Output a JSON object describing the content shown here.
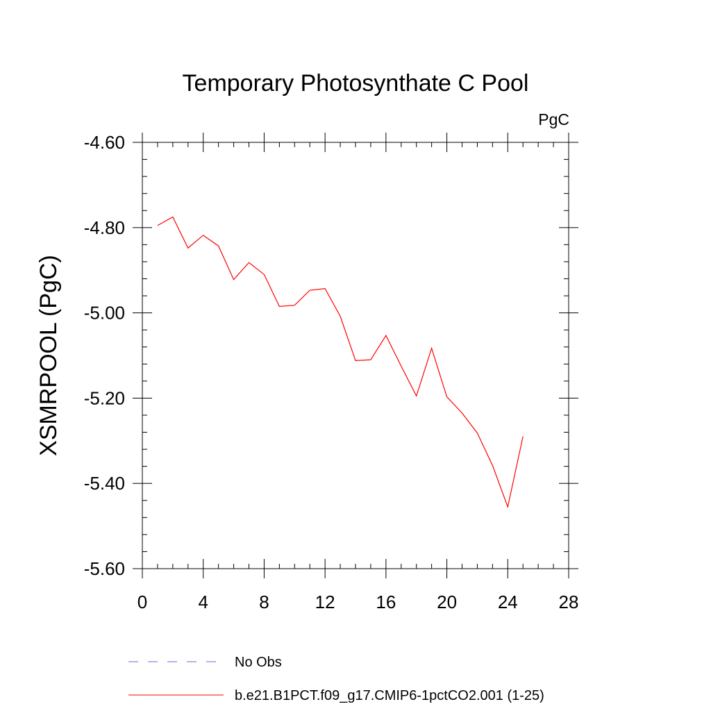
{
  "chart_data": {
    "type": "line",
    "title": "Temporary Photosynthate C Pool",
    "units_label": "PgC",
    "ylabel": "XSMRPOOL  (PgC)",
    "xlabel": "",
    "xlim": [
      0,
      28
    ],
    "ylim": [
      -5.6,
      -4.6
    ],
    "x_ticks": [
      0,
      4,
      8,
      12,
      16,
      20,
      24,
      28
    ],
    "x_tick_labels": [
      "0",
      "4",
      "8",
      "12",
      "16",
      "20",
      "24",
      "28"
    ],
    "y_ticks": [
      -4.6,
      -4.8,
      -5.0,
      -5.2,
      -5.4,
      -5.6
    ],
    "y_tick_labels": [
      "-4.60",
      "-4.80",
      "-5.00",
      "-5.20",
      "-5.40",
      "-5.60"
    ],
    "x_minor_step": 1,
    "y_minor_step": 0.04,
    "grid": false,
    "legend_position": "bottom-left",
    "series": [
      {
        "name": "b.e21.B1PCT.f09_g17.CMIP6-1pctCO2.001 (1-25)",
        "color": "#ff0000",
        "style": "solid",
        "x": [
          1,
          2,
          3,
          4,
          5,
          6,
          7,
          8,
          9,
          10,
          11,
          12,
          13,
          14,
          15,
          16,
          17,
          18,
          19,
          20,
          21,
          22,
          23,
          24,
          25
        ],
        "y": [
          -4.795,
          -4.775,
          -4.848,
          -4.818,
          -4.843,
          -4.922,
          -4.882,
          -4.91,
          -4.985,
          -4.982,
          -4.947,
          -4.943,
          -5.008,
          -5.112,
          -5.11,
          -5.053,
          -5.125,
          -5.195,
          -5.083,
          -5.197,
          -5.235,
          -5.282,
          -5.358,
          -5.455,
          -5.29
        ]
      },
      {
        "name": "No Obs",
        "color": "#6a6ad0",
        "style": "dashed",
        "x": [],
        "y": []
      }
    ]
  }
}
